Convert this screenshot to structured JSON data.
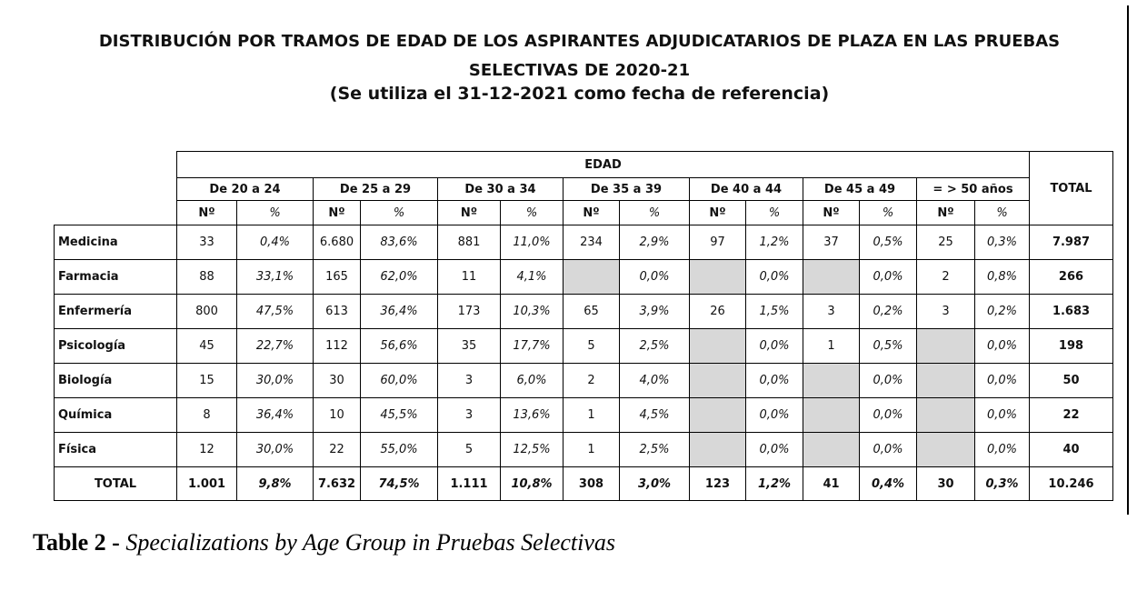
{
  "title": {
    "line1": "DISTRIBUCIÓN POR TRAMOS DE EDAD DE LOS ASPIRANTES ADJUDICATARIOS DE PLAZA EN LAS PRUEBAS",
    "line2": "SELECTIVAS DE 2020-21",
    "line3": "(Se utiliza el 31-12-2021 como fecha de referencia)"
  },
  "table": {
    "edad_header": "EDAD",
    "total_header": "TOTAL",
    "age_groups": [
      "De 20 a 24",
      "De 25 a 29",
      "De 30 a 34",
      "De 35 a 39",
      "De 40 a 44",
      "De 45 a 49",
      "= > 50 años"
    ],
    "sub_n": "Nº",
    "sub_pct": "%",
    "rows": [
      {
        "label": "Medicina",
        "cells": [
          [
            "33",
            "0,4%"
          ],
          [
            "6.680",
            "83,6%"
          ],
          [
            "881",
            "11,0%"
          ],
          [
            "234",
            "2,9%"
          ],
          [
            "97",
            "1,2%"
          ],
          [
            "37",
            "0,5%"
          ],
          [
            "25",
            "0,3%"
          ]
        ],
        "total": "7.987"
      },
      {
        "label": "Farmacia",
        "cells": [
          [
            "88",
            "33,1%"
          ],
          [
            "165",
            "62,0%"
          ],
          [
            "11",
            "4,1%"
          ],
          [
            "",
            "0,0%"
          ],
          [
            "",
            "0,0%"
          ],
          [
            "",
            "0,0%"
          ],
          [
            "2",
            "0,8%"
          ]
        ],
        "total": "266"
      },
      {
        "label": "Enfermería",
        "cells": [
          [
            "800",
            "47,5%"
          ],
          [
            "613",
            "36,4%"
          ],
          [
            "173",
            "10,3%"
          ],
          [
            "65",
            "3,9%"
          ],
          [
            "26",
            "1,5%"
          ],
          [
            "3",
            "0,2%"
          ],
          [
            "3",
            "0,2%"
          ]
        ],
        "total": "1.683"
      },
      {
        "label": "Psicología",
        "cells": [
          [
            "45",
            "22,7%"
          ],
          [
            "112",
            "56,6%"
          ],
          [
            "35",
            "17,7%"
          ],
          [
            "5",
            "2,5%"
          ],
          [
            "",
            "0,0%"
          ],
          [
            "1",
            "0,5%"
          ],
          [
            "",
            "0,0%"
          ]
        ],
        "total": "198"
      },
      {
        "label": "Biología",
        "cells": [
          [
            "15",
            "30,0%"
          ],
          [
            "30",
            "60,0%"
          ],
          [
            "3",
            "6,0%"
          ],
          [
            "2",
            "4,0%"
          ],
          [
            "",
            "0,0%"
          ],
          [
            "",
            "0,0%"
          ],
          [
            "",
            "0,0%"
          ]
        ],
        "total": "50"
      },
      {
        "label": "Química",
        "cells": [
          [
            "8",
            "36,4%"
          ],
          [
            "10",
            "45,5%"
          ],
          [
            "3",
            "13,6%"
          ],
          [
            "1",
            "4,5%"
          ],
          [
            "",
            "0,0%"
          ],
          [
            "",
            "0,0%"
          ],
          [
            "",
            "0,0%"
          ]
        ],
        "total": "22"
      },
      {
        "label": "Física",
        "cells": [
          [
            "12",
            "30,0%"
          ],
          [
            "22",
            "55,0%"
          ],
          [
            "5",
            "12,5%"
          ],
          [
            "1",
            "2,5%"
          ],
          [
            "",
            "0,0%"
          ],
          [
            "",
            "0,0%"
          ],
          [
            "",
            "0,0%"
          ]
        ],
        "total": "40"
      }
    ],
    "total_row": {
      "label": "TOTAL",
      "cells": [
        [
          "1.001",
          "9,8%"
        ],
        [
          "7.632",
          "74,5%"
        ],
        [
          "1.111",
          "10,8%"
        ],
        [
          "308",
          "3,0%"
        ],
        [
          "123",
          "1,2%"
        ],
        [
          "41",
          "0,4%"
        ],
        [
          "30",
          "0,3%"
        ]
      ],
      "total": "10.246"
    }
  },
  "caption": {
    "bold": "Table 2 -",
    "italic": "Specializations by Age Group in Pruebas Selectivas"
  },
  "colors": {
    "header_blue": "#1f3fc4",
    "pct_red": "#b04a4a",
    "empty_gray": "#d8d8d8"
  }
}
